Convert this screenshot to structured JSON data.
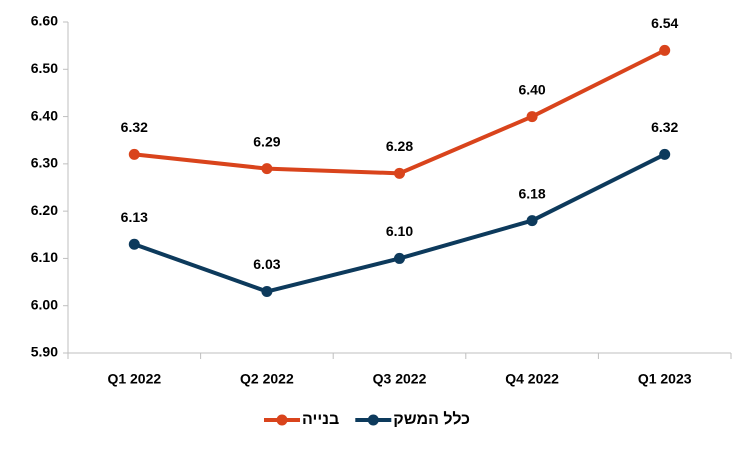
{
  "chart_data": {
    "type": "line",
    "categories": [
      "Q1 2022",
      "Q2 2022",
      "Q3 2022",
      "Q4 2022",
      "Q1 2023"
    ],
    "series": [
      {
        "name": "בנייה",
        "color": "#d9441c",
        "values": [
          6.32,
          6.29,
          6.28,
          6.4,
          6.54
        ],
        "value_labels": [
          "6.32",
          "6.29",
          "6.28",
          "6.40",
          "6.54"
        ]
      },
      {
        "name": "כלל המשק",
        "color": "#0d3a5c",
        "values": [
          6.13,
          6.03,
          6.1,
          6.18,
          6.32
        ],
        "value_labels": [
          "6.13",
          "6.03",
          "6.10",
          "6.18",
          "6.32"
        ]
      }
    ],
    "ylim": [
      5.9,
      6.6
    ],
    "yticks": [
      {
        "value": 5.9,
        "label": "5.90"
      },
      {
        "value": 6.0,
        "label": "6.00"
      },
      {
        "value": 6.1,
        "label": "6.10"
      },
      {
        "value": 6.2,
        "label": "6.20"
      },
      {
        "value": 6.3,
        "label": "6.30"
      },
      {
        "value": 6.4,
        "label": "6.40"
      },
      {
        "value": 6.5,
        "label": "6.50"
      },
      {
        "value": 6.6,
        "label": "6.60"
      }
    ],
    "grid": false,
    "legend": "bottom"
  }
}
